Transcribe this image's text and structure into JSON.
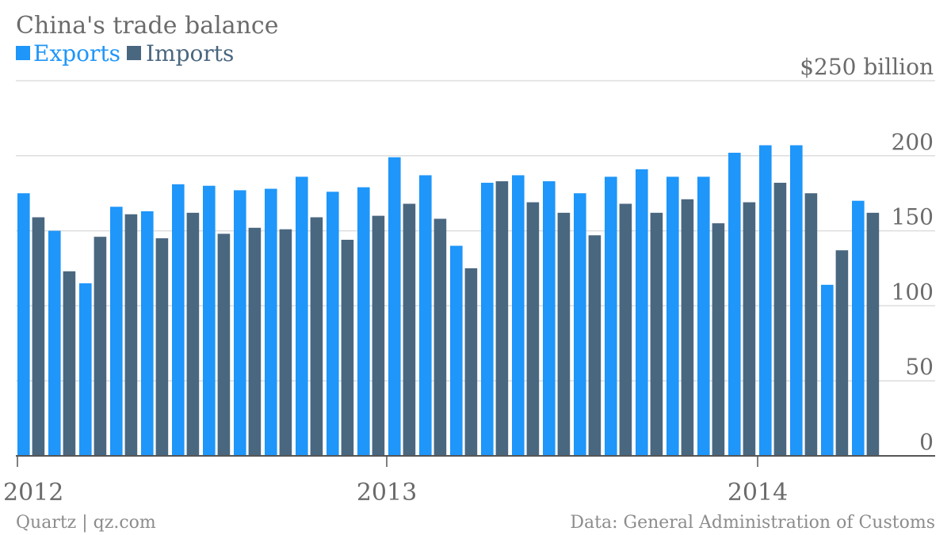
{
  "header": {
    "title": "China's trade balance",
    "legend": [
      {
        "label": "Exports",
        "color": "#1e96fa"
      },
      {
        "label": "Imports",
        "color": "#4a6780"
      }
    ]
  },
  "footer": {
    "source_left": "Quartz | qz.com",
    "source_right": "Data: General Administration of Customs"
  },
  "chart_data": {
    "type": "bar",
    "title": "China's trade balance",
    "xlabel": "",
    "ylabel": "",
    "ylim": [
      0,
      250
    ],
    "y_ticks": [
      {
        "value": 250,
        "label": "$250 billion"
      },
      {
        "value": 200,
        "label": "200"
      },
      {
        "value": 150,
        "label": "150"
      },
      {
        "value": 100,
        "label": "100"
      },
      {
        "value": 50,
        "label": "50"
      },
      {
        "value": 0,
        "label": "0"
      }
    ],
    "x_ticks": [
      {
        "index": 0,
        "label": "2012"
      },
      {
        "index": 12,
        "label": "2013"
      },
      {
        "index": 24,
        "label": "2014"
      }
    ],
    "grid": true,
    "legend": "top-left",
    "categories": [
      "2012-01",
      "2012-02",
      "2012-03",
      "2012-04",
      "2012-05",
      "2012-06",
      "2012-07",
      "2012-08",
      "2012-09",
      "2012-10",
      "2012-11",
      "2012-12",
      "2013-01",
      "2013-02",
      "2013-03",
      "2013-04",
      "2013-05",
      "2013-06",
      "2013-07",
      "2013-08",
      "2013-09",
      "2013-10",
      "2013-11",
      "2013-12",
      "2014-01",
      "2014-02",
      "2014-03",
      "2014-04"
    ],
    "series": [
      {
        "name": "Exports",
        "color": "#1e96fa",
        "values": [
          175,
          150,
          115,
          166,
          163,
          181,
          180,
          177,
          178,
          186,
          176,
          179,
          199,
          187,
          140,
          182,
          187,
          183,
          175,
          186,
          191,
          186,
          186,
          202,
          207,
          207,
          114,
          170
        ]
      },
      {
        "name": "Imports",
        "color": "#4a6780",
        "values": [
          159,
          123,
          146,
          161,
          145,
          162,
          148,
          152,
          151,
          159,
          144,
          160,
          168,
          158,
          125,
          183,
          169,
          162,
          147,
          168,
          162,
          171,
          155,
          169,
          182,
          175,
          137,
          162
        ]
      }
    ]
  }
}
